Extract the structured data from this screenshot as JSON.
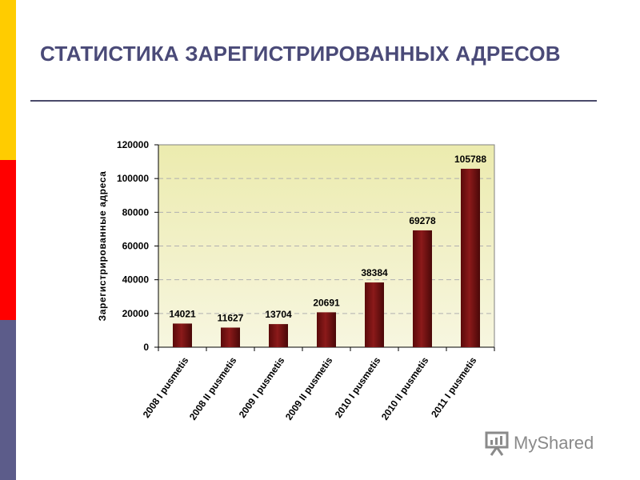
{
  "colors": {
    "stripe_top": "#ffcc00",
    "stripe_middle": "#ff0000",
    "stripe_bottom": "#5c5c8a",
    "title": "#4a4a78",
    "bar": "#8b1a1a",
    "plot_background": "#f0eebc"
  },
  "slide": {
    "title": "СТАТИСТИКА ЗАРЕГИСТРИРОВАННЫХ АДРЕСОВ"
  },
  "watermark": {
    "text": "MyShared",
    "icon": "presentation-board-icon"
  },
  "chart_data": {
    "type": "bar",
    "title": "",
    "xlabel": "",
    "ylabel": "Зарегистрированные адреса",
    "categories": [
      "2008 I pusmetis",
      "2008 II pusmetis",
      "2009 I pusmetis",
      "2009 II pusmetis",
      "2010 I pusmetis",
      "2010 II pusmetis",
      "2011 I pusmetis"
    ],
    "values": [
      14021,
      11627,
      13704,
      20691,
      38384,
      69278,
      105788
    ],
    "ylim": [
      0,
      120000
    ],
    "yticks": [
      0,
      20000,
      40000,
      60000,
      80000,
      100000,
      120000
    ],
    "grid": true,
    "legend": "none",
    "data_labels": true
  }
}
